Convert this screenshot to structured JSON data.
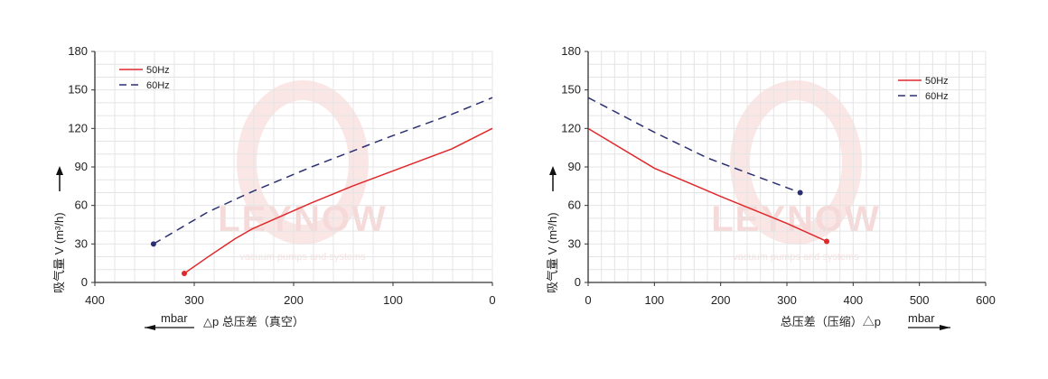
{
  "colors": {
    "50Hz": "#e0292b",
    "60Hz": "#2b3070",
    "grid": "#e4e4e4",
    "axis": "#333333"
  },
  "watermark": {
    "brand": "LEYNOW",
    "tagline": "vacuum pumps and systems"
  },
  "chart_data": [
    {
      "type": "line",
      "title": "",
      "xlabel": "△p 总压差（真空）",
      "xunit": "mbar",
      "ylabel": "吸气量 V (m³/h)",
      "xlim": [
        400,
        0
      ],
      "ylim": [
        0,
        180
      ],
      "xticks": [
        400,
        300,
        200,
        100,
        0
      ],
      "yticks": [
        0,
        30,
        60,
        90,
        120,
        150,
        180
      ],
      "grid": true,
      "legend": "top-left",
      "series": [
        {
          "name": "50Hz",
          "style": "solid",
          "x": [
            310,
            286,
            259,
            241,
            182,
            141,
            41,
            0
          ],
          "y": [
            7,
            20,
            34,
            42,
            62,
            75,
            104,
            120
          ]
        },
        {
          "name": "60Hz",
          "style": "dashed",
          "x": [
            341,
            286,
            241,
            182,
            105,
            41,
            0
          ],
          "y": [
            30,
            55,
            71,
            90,
            113,
            131,
            144
          ]
        }
      ]
    },
    {
      "type": "line",
      "title": "",
      "xlabel": "总压差（压缩）△p",
      "xunit": "mbar",
      "ylabel": "吸气量 V (m³/h)",
      "xlim": [
        0,
        600
      ],
      "ylim": [
        0,
        180
      ],
      "xticks": [
        0,
        100,
        200,
        300,
        400,
        500,
        600
      ],
      "yticks": [
        0,
        30,
        60,
        90,
        120,
        150,
        180
      ],
      "grid": true,
      "legend": "top-right",
      "series": [
        {
          "name": "50Hz",
          "style": "solid",
          "x": [
            0,
            100,
            200,
            300,
            360
          ],
          "y": [
            120,
            89,
            67,
            46,
            32
          ]
        },
        {
          "name": "60Hz",
          "style": "dashed",
          "x": [
            0,
            100,
            180,
            320
          ],
          "y": [
            144,
            117,
            97,
            70
          ]
        }
      ]
    }
  ]
}
